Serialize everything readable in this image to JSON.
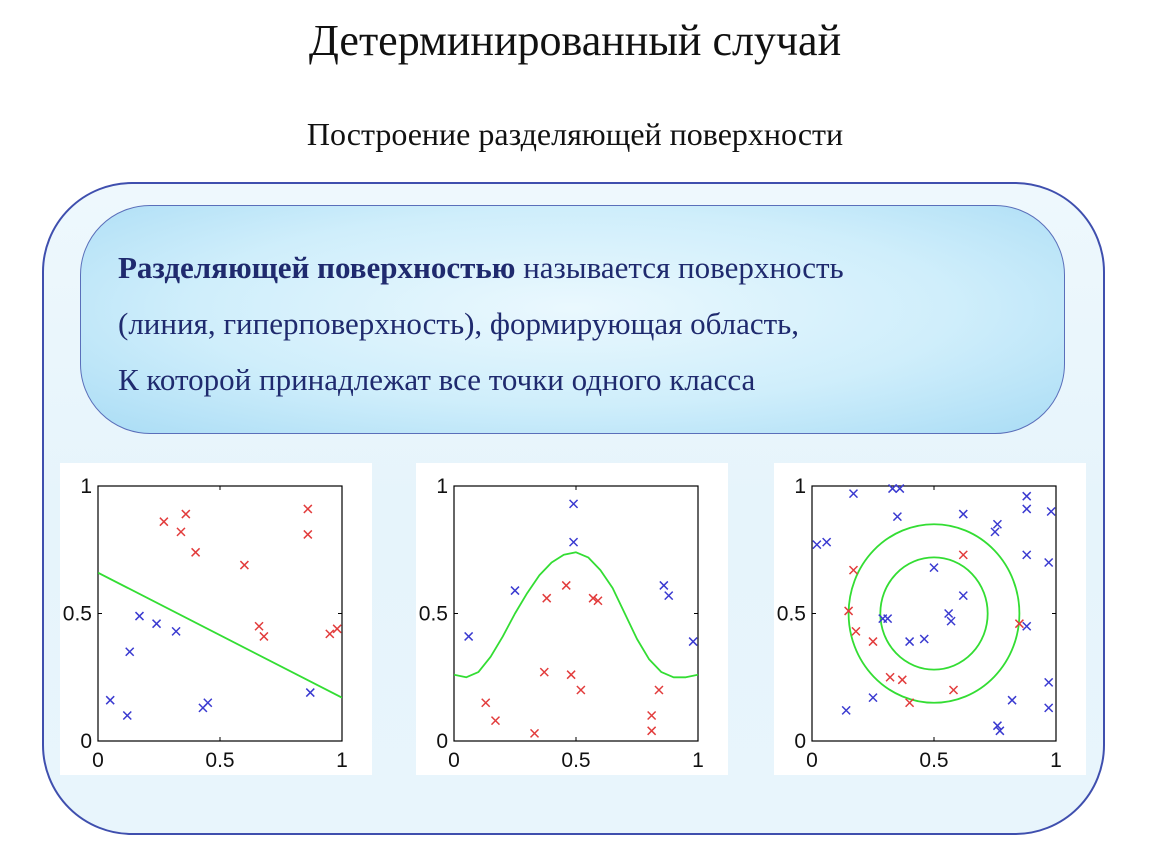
{
  "header": {
    "title": "Детерминированный случай",
    "subtitle": "Построение разделяющей поверхности"
  },
  "definition": {
    "bold_term": "Разделяющей поверхностью",
    "line1_rest": " называется поверхность",
    "line2": "(линия, гиперповерхность), формирующая область,",
    "line3": "К которой принадлежат все точки одного класса"
  },
  "colors": {
    "class_red": "#e23c3c",
    "class_blue": "#3a3ad0",
    "boundary": "#33dd33",
    "panel_border": "#3f4fae",
    "definition_text": "#1f2a6e"
  },
  "chart_data": [
    {
      "type": "scatter",
      "boundary": "line",
      "xlim": [
        0,
        1
      ],
      "ylim": [
        0,
        1
      ],
      "xticks": [
        "0",
        "0.5",
        "1"
      ],
      "yticks": [
        "0",
        "0.5",
        "1"
      ],
      "series": [
        {
          "marker": "x",
          "color": "red",
          "points": [
            [
              0.27,
              0.86
            ],
            [
              0.36,
              0.89
            ],
            [
              0.34,
              0.82
            ],
            [
              0.4,
              0.74
            ],
            [
              0.6,
              0.69
            ],
            [
              0.86,
              0.91
            ],
            [
              0.86,
              0.81
            ],
            [
              0.66,
              0.45
            ],
            [
              0.68,
              0.41
            ],
            [
              0.95,
              0.42
            ],
            [
              0.98,
              0.44
            ]
          ]
        },
        {
          "marker": "x",
          "color": "blue",
          "points": [
            [
              0.17,
              0.49
            ],
            [
              0.24,
              0.46
            ],
            [
              0.32,
              0.43
            ],
            [
              0.13,
              0.35
            ],
            [
              0.05,
              0.16
            ],
            [
              0.12,
              0.1
            ],
            [
              0.43,
              0.13
            ],
            [
              0.45,
              0.15
            ],
            [
              0.87,
              0.19
            ]
          ]
        }
      ],
      "boundary_line": [
        [
          0,
          0.66
        ],
        [
          1,
          0.17
        ]
      ]
    },
    {
      "type": "scatter",
      "boundary": "curve",
      "xlim": [
        0,
        1
      ],
      "ylim": [
        0,
        1
      ],
      "xticks": [
        "0",
        "0.5",
        "1"
      ],
      "yticks": [
        "0",
        "0.5",
        "1"
      ],
      "series": [
        {
          "marker": "x",
          "color": "red",
          "points": [
            [
              0.38,
              0.56
            ],
            [
              0.46,
              0.61
            ],
            [
              0.57,
              0.56
            ],
            [
              0.59,
              0.55
            ],
            [
              0.37,
              0.27
            ],
            [
              0.48,
              0.26
            ],
            [
              0.52,
              0.2
            ],
            [
              0.13,
              0.15
            ],
            [
              0.17,
              0.08
            ],
            [
              0.33,
              0.03
            ],
            [
              0.84,
              0.2
            ],
            [
              0.81,
              0.1
            ],
            [
              0.81,
              0.04
            ]
          ]
        },
        {
          "marker": "x",
          "color": "blue",
          "points": [
            [
              0.49,
              0.93
            ],
            [
              0.49,
              0.78
            ],
            [
              0.25,
              0.59
            ],
            [
              0.06,
              0.41
            ],
            [
              0.86,
              0.61
            ],
            [
              0.88,
              0.57
            ],
            [
              0.98,
              0.39
            ]
          ]
        }
      ],
      "boundary_curve": [
        [
          0,
          0.26
        ],
        [
          0.05,
          0.25
        ],
        [
          0.1,
          0.27
        ],
        [
          0.15,
          0.33
        ],
        [
          0.2,
          0.41
        ],
        [
          0.25,
          0.5
        ],
        [
          0.3,
          0.58
        ],
        [
          0.35,
          0.65
        ],
        [
          0.4,
          0.7
        ],
        [
          0.45,
          0.73
        ],
        [
          0.5,
          0.74
        ],
        [
          0.55,
          0.72
        ],
        [
          0.6,
          0.67
        ],
        [
          0.65,
          0.6
        ],
        [
          0.7,
          0.5
        ],
        [
          0.75,
          0.4
        ],
        [
          0.8,
          0.32
        ],
        [
          0.85,
          0.27
        ],
        [
          0.9,
          0.25
        ],
        [
          0.95,
          0.25
        ],
        [
          1,
          0.26
        ]
      ]
    },
    {
      "type": "scatter",
      "boundary": "circles",
      "xlim": [
        0,
        1
      ],
      "ylim": [
        0,
        1
      ],
      "xticks": [
        "0",
        "0.5",
        "1"
      ],
      "yticks": [
        "0",
        "0.5",
        "1"
      ],
      "series": [
        {
          "marker": "x",
          "color": "red",
          "points": [
            [
              0.17,
              0.67
            ],
            [
              0.15,
              0.51
            ],
            [
              0.18,
              0.43
            ],
            [
              0.25,
              0.39
            ],
            [
              0.32,
              0.25
            ],
            [
              0.37,
              0.24
            ],
            [
              0.4,
              0.15
            ],
            [
              0.58,
              0.2
            ],
            [
              0.62,
              0.73
            ],
            [
              0.85,
              0.46
            ]
          ]
        },
        {
          "marker": "x",
          "color": "blue",
          "points": [
            [
              0.02,
              0.77
            ],
            [
              0.06,
              0.78
            ],
            [
              0.17,
              0.97
            ],
            [
              0.33,
              0.99
            ],
            [
              0.36,
              0.99
            ],
            [
              0.35,
              0.88
            ],
            [
              0.62,
              0.89
            ],
            [
              0.75,
              0.82
            ],
            [
              0.76,
              0.85
            ],
            [
              0.88,
              0.91
            ],
            [
              0.88,
              0.96
            ],
            [
              0.98,
              0.9
            ],
            [
              0.97,
              0.7
            ],
            [
              0.88,
              0.73
            ],
            [
              0.62,
              0.57
            ],
            [
              0.5,
              0.68
            ],
            [
              0.56,
              0.5
            ],
            [
              0.57,
              0.47
            ],
            [
              0.46,
              0.4
            ],
            [
              0.4,
              0.39
            ],
            [
              0.29,
              0.48
            ],
            [
              0.31,
              0.48
            ],
            [
              0.88,
              0.45
            ],
            [
              0.25,
              0.17
            ],
            [
              0.14,
              0.12
            ],
            [
              0.82,
              0.16
            ],
            [
              0.76,
              0.06
            ],
            [
              0.77,
              0.04
            ],
            [
              0.97,
              0.23
            ],
            [
              0.97,
              0.13
            ]
          ]
        }
      ],
      "boundary_circles": [
        {
          "cx": 0.5,
          "cy": 0.5,
          "r": 0.35
        },
        {
          "cx": 0.5,
          "cy": 0.5,
          "r": 0.22
        }
      ]
    }
  ]
}
